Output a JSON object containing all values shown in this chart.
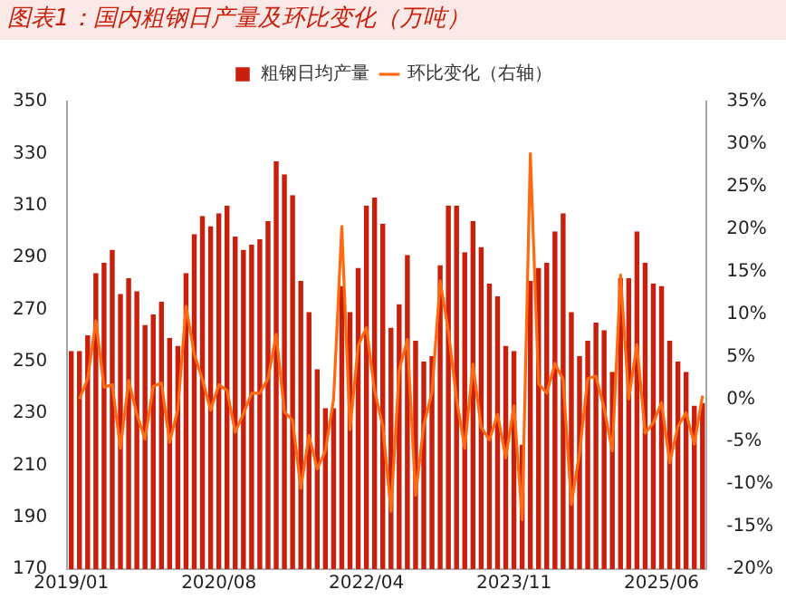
{
  "chart_data": {
    "type": "bar",
    "title": "图表1：国内粗钢日产量及环比变化（万吨）",
    "categories": [
      "2019/01",
      null,
      null,
      null,
      null,
      null,
      null,
      null,
      null,
      null,
      null,
      null,
      null,
      null,
      null,
      null,
      null,
      null,
      "2020/08",
      null,
      null,
      null,
      null,
      null,
      null,
      null,
      null,
      null,
      null,
      null,
      null,
      null,
      null,
      null,
      null,
      null,
      "2022/04",
      null,
      null,
      null,
      null,
      null,
      null,
      null,
      null,
      null,
      null,
      null,
      null,
      null,
      null,
      null,
      null,
      null,
      "2023/11",
      null,
      null,
      null,
      null,
      null,
      null,
      null,
      null,
      null,
      null,
      null,
      null,
      null,
      null,
      null,
      null,
      null,
      "2025/06",
      null,
      null,
      null,
      null,
      null
    ],
    "series": [
      {
        "name": "粗钢日均产量",
        "color": "#c8200c",
        "values": [
          254,
          254,
          260,
          284,
          288,
          293,
          276,
          282,
          277,
          264,
          268,
          273,
          259,
          256,
          284,
          299,
          306,
          302,
          307,
          310,
          298,
          293,
          295,
          297,
          304,
          327,
          322,
          314,
          281,
          269,
          247,
          232,
          232,
          279,
          269,
          286,
          310,
          313,
          303,
          263,
          272,
          291,
          258,
          250,
          252,
          287,
          310,
          310,
          292,
          304,
          294,
          280,
          275,
          256,
          254,
          218,
          281,
          286,
          288,
          300,
          307,
          269,
          252,
          258,
          265,
          262,
          246,
          282,
          282,
          300,
          288,
          280,
          279,
          258,
          250,
          246,
          233,
          234
        ]
      },
      {
        "name": "环比变化（右轴）",
        "type": "line",
        "axis": "y2",
        "color": "#ff6a10",
        "values": [
          null,
          0.0,
          2.4,
          9.2,
          1.4,
          1.7,
          -5.8,
          2.2,
          -1.8,
          -4.7,
          1.5,
          1.9,
          -5.1,
          -1.2,
          10.9,
          5.3,
          2.3,
          -1.3,
          1.7,
          1.0,
          -3.9,
          -1.7,
          0.7,
          0.7,
          2.4,
          7.6,
          -1.5,
          -2.5,
          -10.5,
          -4.3,
          -8.2,
          -6.1,
          0.0,
          20.3,
          -3.6,
          6.3,
          8.4,
          1.0,
          -3.2,
          -13.2,
          3.4,
          7.0,
          -11.3,
          -3.1,
          0.8,
          13.9,
          8.0,
          0.0,
          -5.8,
          4.1,
          -3.3,
          -4.8,
          -1.8,
          -6.9,
          -0.8,
          -14.2,
          28.9,
          1.8,
          0.7,
          4.2,
          2.3,
          -12.4,
          -6.3,
          2.4,
          2.7,
          -1.1,
          -6.1,
          14.6,
          0.0,
          6.4,
          -4.0,
          -2.8,
          -0.4,
          -7.5,
          -3.2,
          -1.6,
          -5.3,
          0.4
        ]
      }
    ],
    "ylim": [
      170,
      350
    ],
    "yticks": [
      170,
      190,
      210,
      230,
      250,
      270,
      290,
      310,
      330,
      350
    ],
    "y2lim": [
      -20,
      35
    ],
    "y2ticks": [
      {
        "value": -20,
        "label": "-20%"
      },
      {
        "value": -15,
        "label": "-15%"
      },
      {
        "value": -10,
        "label": "-10%"
      },
      {
        "value": -5,
        "label": "-5%"
      },
      {
        "value": 0,
        "label": "0%"
      },
      {
        "value": 5,
        "label": "5%"
      },
      {
        "value": 10,
        "label": "10%"
      },
      {
        "value": 15,
        "label": "15%"
      },
      {
        "value": 20,
        "label": "20%"
      },
      {
        "value": 25,
        "label": "25%"
      },
      {
        "value": 30,
        "label": "30%"
      },
      {
        "value": 35,
        "label": "35%"
      }
    ],
    "grid": false,
    "legend": "top",
    "marker": "none",
    "line_style": "solid"
  }
}
